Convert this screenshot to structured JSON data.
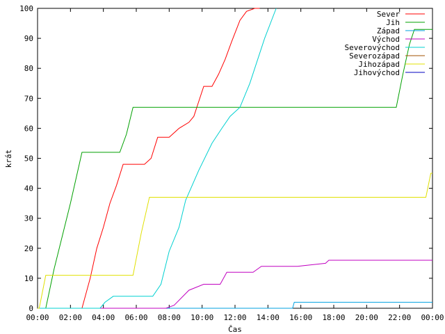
{
  "chart_data": {
    "type": "line",
    "xlabel": "Čas",
    "ylabel": "krát",
    "xlim": [
      0,
      24
    ],
    "ylim": [
      0,
      100
    ],
    "x_ticks": [
      {
        "v": 0,
        "label": "00:00"
      },
      {
        "v": 2,
        "label": "02:00"
      },
      {
        "v": 4,
        "label": "04:00"
      },
      {
        "v": 6,
        "label": "06:00"
      },
      {
        "v": 8,
        "label": "08:00"
      },
      {
        "v": 10,
        "label": "10:00"
      },
      {
        "v": 12,
        "label": "12:00"
      },
      {
        "v": 14,
        "label": "14:00"
      },
      {
        "v": 16,
        "label": "16:00"
      },
      {
        "v": 18,
        "label": "18:00"
      },
      {
        "v": 20,
        "label": "20:00"
      },
      {
        "v": 22,
        "label": "22:00"
      },
      {
        "v": 24,
        "label": "00:00"
      }
    ],
    "y_ticks": [
      {
        "v": 0,
        "label": "0"
      },
      {
        "v": 10,
        "label": "10"
      },
      {
        "v": 20,
        "label": "20"
      },
      {
        "v": 30,
        "label": "30"
      },
      {
        "v": 40,
        "label": "40"
      },
      {
        "v": 50,
        "label": "50"
      },
      {
        "v": 60,
        "label": "60"
      },
      {
        "v": 70,
        "label": "70"
      },
      {
        "v": 80,
        "label": "80"
      },
      {
        "v": 90,
        "label": "90"
      },
      {
        "v": 100,
        "label": "100"
      }
    ],
    "grid": false,
    "legend_position": "top-right",
    "series": [
      {
        "name": "Sever",
        "color": "#ff0000",
        "x": [
          0,
          2.7,
          3.2,
          3.6,
          4.0,
          4.4,
          4.8,
          5.2,
          6.5,
          6.9,
          7.3,
          8.0,
          8.6,
          9.2,
          9.5,
          9.8,
          10.1,
          10.6,
          11.0,
          11.4,
          11.8,
          12.3,
          12.7,
          13.2,
          13.5
        ],
        "y": [
          0,
          0,
          10,
          20,
          27,
          35,
          41,
          48,
          48,
          50,
          57,
          57,
          60,
          62,
          64,
          69,
          74,
          74,
          78,
          83,
          89,
          96,
          99,
          100,
          100
        ]
      },
      {
        "name": "Jih",
        "color": "#00a000",
        "x": [
          0,
          0.5,
          1.0,
          1.5,
          2.0,
          2.7,
          5.0,
          5.4,
          5.8,
          21.8,
          22.2,
          22.6,
          22.9,
          24
        ],
        "y": [
          0,
          0,
          13,
          24,
          35,
          52,
          52,
          58,
          67,
          67,
          78,
          88,
          93,
          93
        ]
      },
      {
        "name": "Západ",
        "color": "#00a0e0",
        "x": [
          0,
          15.5,
          15.6,
          24
        ],
        "y": [
          0,
          0,
          2,
          2
        ]
      },
      {
        "name": "Východ",
        "color": "#c000c0",
        "x": [
          0,
          7.8,
          8.3,
          9.2,
          10.1,
          11.1,
          11.5,
          13.1,
          13.6,
          15.8,
          17.5,
          17.7,
          24
        ],
        "y": [
          0,
          0,
          1,
          6,
          8,
          8,
          12,
          12,
          14,
          14,
          15,
          16,
          16
        ]
      },
      {
        "name": "Severovýchod",
        "color": "#00d0d0",
        "x": [
          0,
          3.8,
          4.1,
          4.6,
          7.0,
          7.5,
          8.0,
          8.6,
          9.0,
          9.8,
          10.6,
          11.2,
          11.7,
          12.3,
          12.9,
          13.2,
          13.8,
          14.5
        ],
        "y": [
          0,
          0,
          2,
          4,
          4,
          8,
          19,
          27,
          36,
          46,
          55,
          60,
          64,
          67,
          75,
          80,
          90,
          100
        ]
      },
      {
        "name": "Severozápad",
        "color": "#a05000",
        "x": [],
        "y": []
      },
      {
        "name": "Jihozápad",
        "color": "#e0e000",
        "x": [
          0,
          0.1,
          0.5,
          5.8,
          6.3,
          6.8,
          23.6,
          23.9,
          24
        ],
        "y": [
          0,
          0,
          11,
          11,
          25,
          37,
          37,
          45,
          45
        ]
      },
      {
        "name": "Jihovýchod",
        "color": "#0000c0",
        "x": [],
        "y": []
      }
    ]
  }
}
